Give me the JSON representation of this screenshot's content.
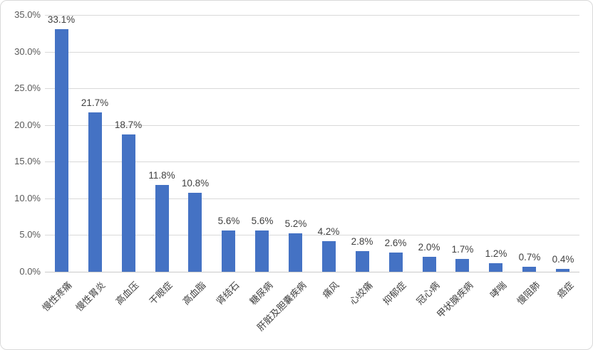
{
  "chart_data": {
    "type": "bar",
    "title": "",
    "xlabel": "",
    "ylabel": "",
    "categories": [
      "慢性疼痛",
      "慢性胃炎",
      "高血压",
      "干眼症",
      "高血脂",
      "肾结石",
      "糖尿病",
      "肝脏及胆囊疾病",
      "痛风",
      "心绞痛",
      "抑郁症",
      "冠心病",
      "甲状腺疾病",
      "哮喘",
      "慢阻肺",
      "癌症"
    ],
    "values": [
      33.1,
      21.7,
      18.7,
      11.8,
      10.8,
      5.6,
      5.6,
      5.2,
      4.2,
      2.8,
      2.6,
      2.0,
      1.7,
      1.2,
      0.7,
      0.4
    ],
    "data_labels": [
      "33.1%",
      "21.7%",
      "18.7%",
      "11.8%",
      "10.8%",
      "5.6%",
      "5.6%",
      "5.2%",
      "4.2%",
      "2.8%",
      "2.6%",
      "2.0%",
      "1.7%",
      "1.2%",
      "0.7%",
      "0.4%"
    ],
    "y_ticks": [
      "0.0%",
      "5.0%",
      "10.0%",
      "15.0%",
      "20.0%",
      "25.0%",
      "30.0%",
      "35.0%"
    ],
    "y_tick_values": [
      0,
      5,
      10,
      15,
      20,
      25,
      30,
      35
    ],
    "ylim": [
      0,
      35
    ],
    "grid": true,
    "legend": "none",
    "x_label_rotation_deg": -45,
    "colors": {
      "bar": "#4472C4",
      "gridline": "#d9d9d9",
      "axis_line": "#c9c9c9",
      "y_tick_text": "#595959",
      "data_label_text": "#3f3f3f",
      "x_label_text": "#404040",
      "frame_border": "#d9d9d9",
      "background": "#ffffff"
    }
  }
}
